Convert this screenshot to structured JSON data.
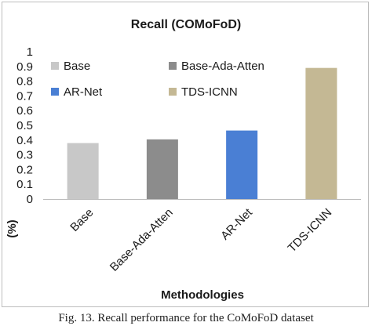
{
  "caption": "Fig. 13.  Recall performance for the CoMoFoD dataset",
  "chart_data": {
    "type": "bar",
    "title": "Recall (COMoFoD)",
    "xlabel": "Methodologies",
    "ylabel": "(%)",
    "ylim": [
      0,
      1
    ],
    "yticks": [
      "0",
      "0.1",
      "0.2",
      "0.3",
      "0.4",
      "0.5",
      "0.6",
      "0.7",
      "0.8",
      "0.9",
      "1"
    ],
    "categories": [
      "Base",
      "Base-Ada-Atten",
      "AR-Net",
      "TDS-ICNN"
    ],
    "values": [
      0.38,
      0.405,
      0.465,
      0.89
    ],
    "colors": [
      "#c8c8c8",
      "#8c8c8c",
      "#4a7fd4",
      "#c4b894"
    ],
    "legend": [
      {
        "label": "Base",
        "color": "#c8c8c8"
      },
      {
        "label": "Base-Ada-Atten",
        "color": "#8c8c8c"
      },
      {
        "label": "AR-Net",
        "color": "#4a7fd4"
      },
      {
        "label": "TDS-ICNN",
        "color": "#c4b894"
      }
    ],
    "legend_position": "top",
    "grid": false
  }
}
